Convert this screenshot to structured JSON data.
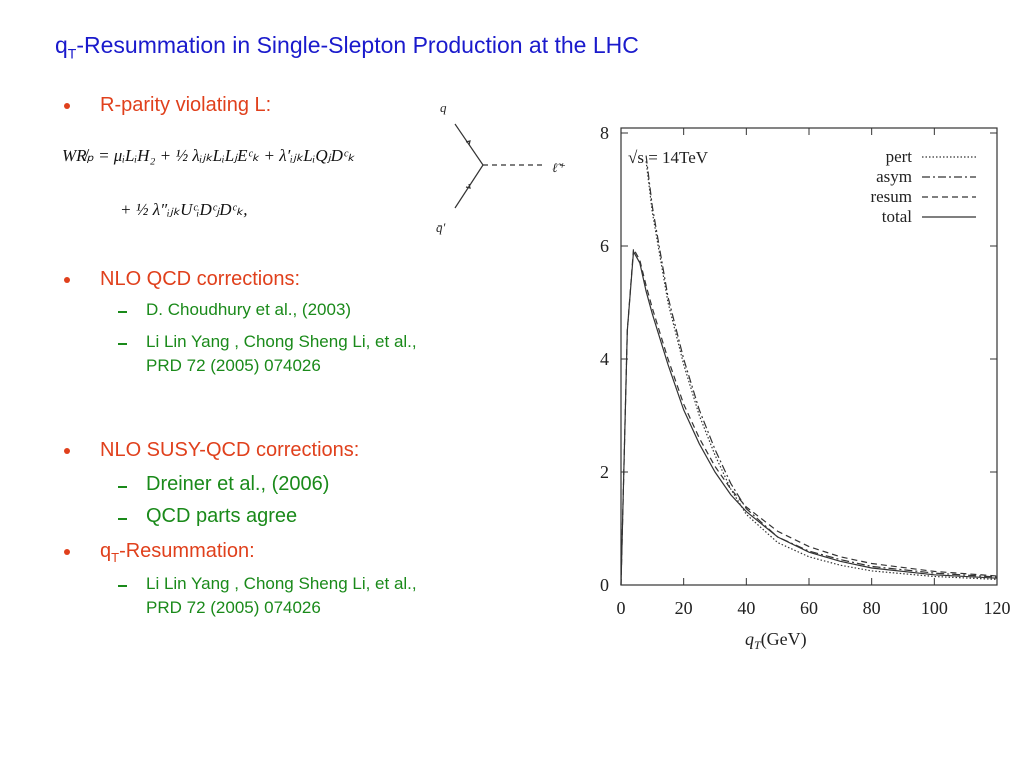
{
  "title": {
    "main": "q",
    "subscript": "T",
    "rest": "-Resummation in Single-Slepton Production at the LHC"
  },
  "bullet_1": "R-parity violating L:",
  "formula": {
    "line_1": "WR̸ₚ = μᵢLᵢH₂ + ½ λᵢⱼₖLᵢLⱼEᶜₖ + λ′ᵢⱼₖLᵢQⱼDᶜₖ",
    "line_2": "+ ½ λ″ᵢⱼₖUᶜᵢDᶜⱼDᶜₖ,"
  },
  "diagram": {
    "quark": "q",
    "antiquark": "q̄′",
    "slepton": "ℓ̃⁺"
  },
  "bullet_2": {
    "text": "NLO QCD corrections:",
    "items": [
      [
        "D. Choudhury et al., (2003)"
      ],
      [
        "Li Lin Yang , Chong Sheng Li, et al.,",
        "PRD 72 (2005) 074026"
      ]
    ]
  },
  "bullet_3": {
    "text": "NLO SUSY-QCD corrections:",
    "items": [
      "Dreiner et al., (2006)",
      "QCD parts agree"
    ]
  },
  "bullet_4": {
    "main": "q",
    "subscript": "T",
    "rest": "-Resummation:",
    "items": [
      [
        "Li Lin Yang , Chong Sheng Li, et al.,",
        "PRD 72 (2005) 074026"
      ]
    ]
  },
  "chart_data": {
    "type": "line",
    "x_label": {
      "main": "q",
      "subscript": "T",
      "unit": "(GeV)"
    },
    "annotation": "√s = 14TeV",
    "xlim": [
      0,
      120
    ],
    "ylim": [
      0,
      8
    ],
    "xticks": [
      0,
      20,
      40,
      60,
      80,
      100,
      120
    ],
    "yticks": [
      0,
      2,
      4,
      6,
      8
    ],
    "x": [
      0,
      2,
      4,
      6,
      8,
      10,
      15,
      20,
      25,
      30,
      35,
      40,
      50,
      60,
      70,
      80,
      100,
      120
    ],
    "series": [
      {
        "name": "pert",
        "color": "#333333",
        "style": "dotted",
        "values": [
          null,
          null,
          null,
          null,
          7.5,
          6.6,
          5.0,
          3.9,
          3.0,
          2.3,
          1.7,
          1.25,
          0.75,
          0.5,
          0.35,
          0.25,
          0.15,
          0.1
        ]
      },
      {
        "name": "asym",
        "color": "#333333",
        "style": "dashdot",
        "values": [
          null,
          null,
          null,
          null,
          7.6,
          6.7,
          5.1,
          4.0,
          3.1,
          2.4,
          1.8,
          1.35,
          0.85,
          0.6,
          0.45,
          0.33,
          0.21,
          0.14
        ]
      },
      {
        "name": "resum",
        "color": "#333333",
        "style": "dashed",
        "values": [
          0,
          4.5,
          5.95,
          5.75,
          5.3,
          4.9,
          4.0,
          3.2,
          2.6,
          2.1,
          1.7,
          1.38,
          0.95,
          0.68,
          0.5,
          0.38,
          0.24,
          0.16
        ]
      },
      {
        "name": "total",
        "color": "#333333",
        "style": "solid",
        "values": [
          0,
          4.5,
          5.9,
          5.7,
          5.2,
          4.8,
          3.9,
          3.1,
          2.5,
          2.0,
          1.6,
          1.3,
          0.85,
          0.58,
          0.42,
          0.3,
          0.18,
          0.12
        ]
      }
    ],
    "legend": "upper-right"
  }
}
